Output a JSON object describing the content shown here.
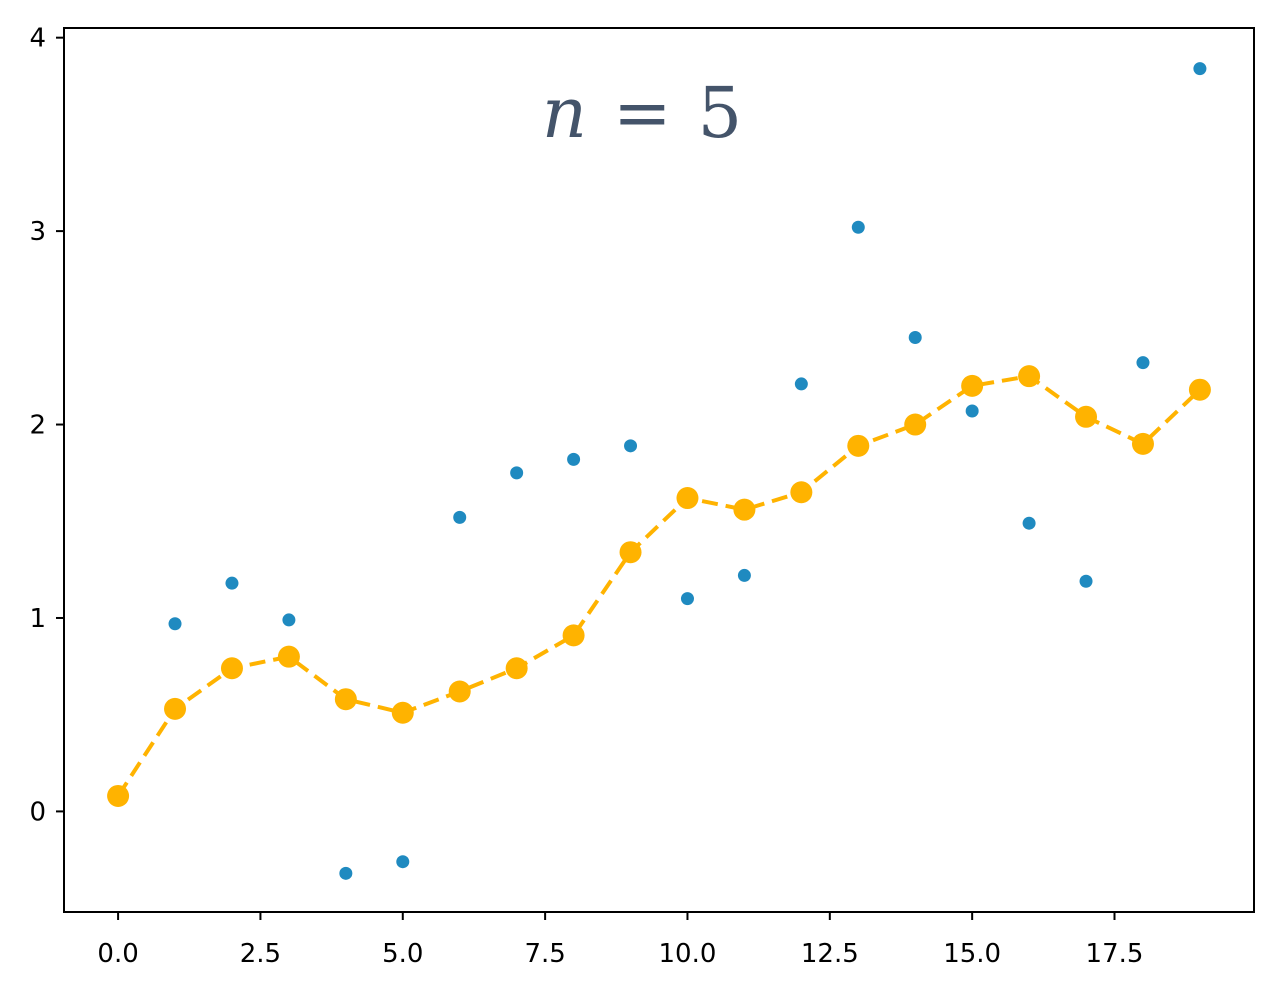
{
  "chart_data": {
    "type": "scatter",
    "annotation": {
      "variable": "n",
      "relation": "=",
      "value": "5"
    },
    "xlim": [
      -0.95,
      19.95
    ],
    "ylim": [
      -0.52,
      4.05
    ],
    "x_ticks": [
      "0.0",
      "2.5",
      "5.0",
      "7.5",
      "10.0",
      "12.5",
      "15.0",
      "17.5"
    ],
    "x_tick_values": [
      0,
      2.5,
      5,
      7.5,
      10,
      12.5,
      15,
      17.5
    ],
    "y_ticks": [
      "0",
      "1",
      "2",
      "3",
      "4"
    ],
    "y_tick_values": [
      0,
      1,
      2,
      3,
      4
    ],
    "grid": false,
    "series": [
      {
        "kind": "scatter",
        "color": "#1f8ac0",
        "x": [
          0,
          1,
          2,
          3,
          4,
          5,
          6,
          7,
          8,
          9,
          10,
          11,
          12,
          13,
          14,
          15,
          16,
          17,
          18,
          19
        ],
        "y": [
          0.08,
          0.97,
          1.18,
          0.99,
          -0.32,
          -0.26,
          1.52,
          1.75,
          1.82,
          1.89,
          1.1,
          1.22,
          2.21,
          3.02,
          2.45,
          2.07,
          1.49,
          1.19,
          2.32,
          3.84
        ]
      },
      {
        "kind": "line-markers",
        "color": "#ffb300",
        "linestyle": "dashed",
        "x": [
          0,
          1,
          2,
          3,
          4,
          5,
          6,
          7,
          8,
          9,
          10,
          11,
          12,
          13,
          14,
          15,
          16,
          17,
          18,
          19
        ],
        "y": [
          0.08,
          0.53,
          0.74,
          0.8,
          0.58,
          0.51,
          0.62,
          0.74,
          0.91,
          1.34,
          1.62,
          1.56,
          1.65,
          1.89,
          2.0,
          2.2,
          2.25,
          2.04,
          1.9,
          2.18
        ]
      }
    ]
  }
}
